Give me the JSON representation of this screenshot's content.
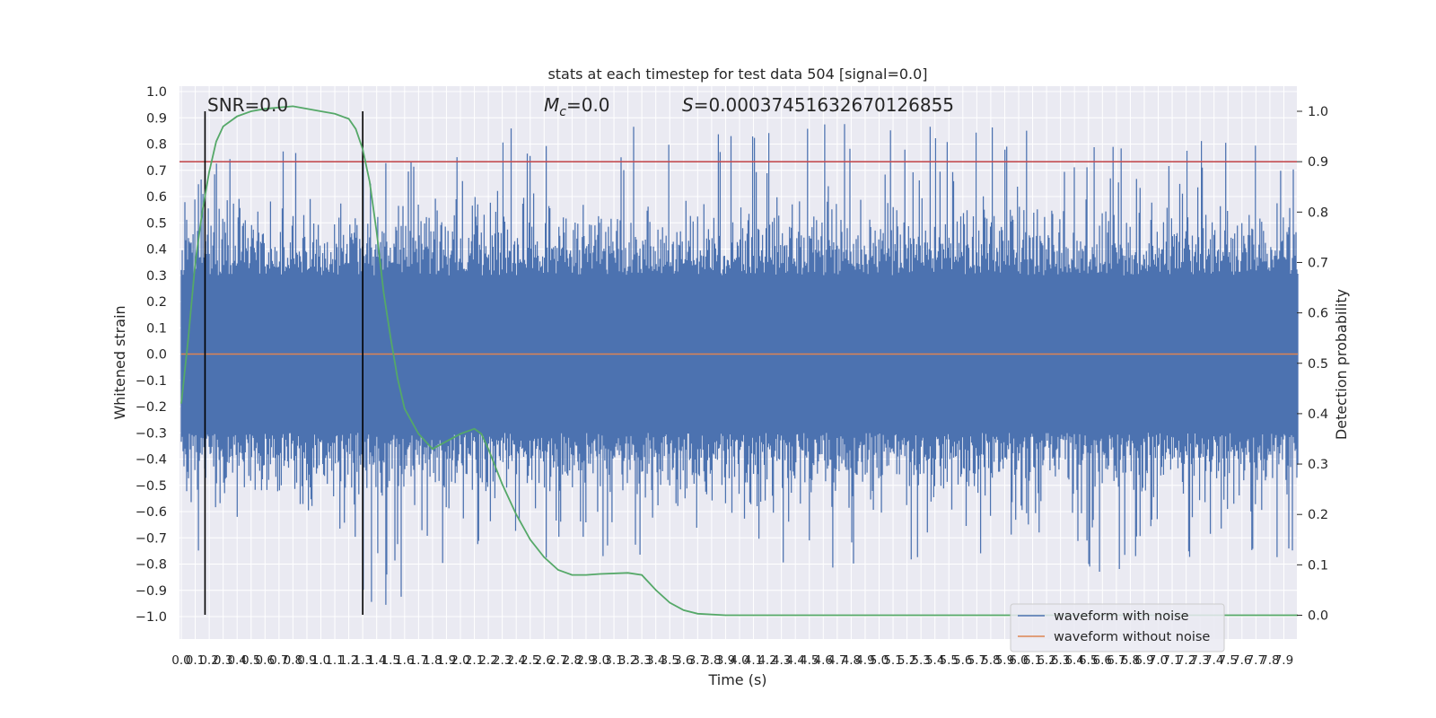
{
  "chart_data": {
    "type": "line",
    "title": "stats at each timestep for test data 504 [signal=0.0]",
    "xlabel": "Time (s)",
    "ylabel": "Whitened strain",
    "y2label": "Detection probability",
    "xlim": [
      0,
      8
    ],
    "ylim": [
      -1.1,
      1.05
    ],
    "y2lim": [
      -0.05,
      1.04
    ],
    "x_ticks": [
      "0.0",
      "0.1",
      "0.2",
      "0.3",
      "0.4",
      "0.5",
      "0.6",
      "0.7",
      "0.8",
      "0.9",
      "1.0",
      "1.1",
      "1.2",
      "1.3",
      "1.4",
      "1.5",
      "1.6",
      "1.7",
      "1.8",
      "1.9",
      "2.0",
      "2.1",
      "2.2",
      "2.3",
      "2.4",
      "2.5",
      "2.6",
      "2.7",
      "2.8",
      "2.9",
      "3.0",
      "3.1",
      "3.2",
      "3.3",
      "3.4",
      "3.5",
      "3.6",
      "3.7",
      "3.8",
      "3.9",
      "4.0",
      "4.1",
      "4.2",
      "4.3",
      "4.4",
      "4.5",
      "4.6",
      "4.7",
      "4.8",
      "4.9",
      "5.0",
      "5.1",
      "5.2",
      "5.3",
      "5.4",
      "5.5",
      "5.6",
      "5.7",
      "5.8",
      "5.9",
      "6.0",
      "6.1",
      "6.2",
      "6.3",
      "6.4",
      "6.5",
      "6.6",
      "6.7",
      "6.8",
      "6.9",
      "7.0",
      "7.1",
      "7.2",
      "7.3",
      "7.4",
      "7.5",
      "7.6",
      "7.7",
      "7.8",
      "7.9"
    ],
    "y_ticks": [
      "1.0",
      "0.9",
      "0.8",
      "0.7",
      "0.6",
      "0.5",
      "0.4",
      "0.3",
      "0.2",
      "0.1",
      "0.0",
      "−0.1",
      "−0.2",
      "−0.3",
      "−0.4",
      "−0.5",
      "−0.6",
      "−0.7",
      "−0.8",
      "−0.9",
      "−1.0"
    ],
    "y2_ticks": [
      "1.0",
      "0.9",
      "0.8",
      "0.7",
      "0.6",
      "0.5",
      "0.4",
      "0.3",
      "0.2",
      "0.1",
      "0.0"
    ],
    "annotations": {
      "snr": "SNR=0.0",
      "mc_symbol": "M",
      "mc_sub": "c",
      "mc_value": "=0.0",
      "s_symbol": "S",
      "s_value": "=0.00037451632670126855"
    },
    "vertical_markers_x": [
      0.17,
      1.3
    ],
    "threshold_y2": 0.9,
    "series": [
      {
        "name": "waveform with noise",
        "color": "#4c72b0",
        "note": "dense noise, amplitude roughly within [-1.0, 0.9]",
        "x": [
          0.0,
          0.1,
          0.2,
          0.4,
          0.6,
          0.8,
          1.0,
          1.2,
          1.4,
          2.0,
          3.0,
          4.0,
          5.0,
          6.0,
          7.0,
          8.0
        ],
        "min": [
          -0.68,
          -1.0,
          -0.6,
          -0.62,
          -0.7,
          -0.66,
          -0.6,
          -0.86,
          -1.0,
          -0.8,
          -0.82,
          -0.8,
          -0.88,
          -0.82,
          -0.86,
          -0.82
        ],
        "max": [
          0.6,
          0.82,
          0.85,
          0.72,
          0.8,
          0.87,
          0.8,
          0.62,
          0.86,
          0.86,
          0.9,
          0.9,
          0.88,
          0.86,
          0.8,
          0.84
        ]
      },
      {
        "name": "waveform without noise",
        "color": "#dd8452",
        "x": [
          0.0,
          8.0
        ],
        "y": [
          0.0,
          0.0
        ]
      },
      {
        "name": "",
        "color": "#55a868",
        "axis": "right",
        "x": [
          0.0,
          0.05,
          0.1,
          0.15,
          0.2,
          0.25,
          0.3,
          0.4,
          0.5,
          0.6,
          0.8,
          1.0,
          1.1,
          1.2,
          1.25,
          1.3,
          1.35,
          1.4,
          1.45,
          1.5,
          1.55,
          1.6,
          1.7,
          1.8,
          1.9,
          2.0,
          2.1,
          2.15,
          2.2,
          2.3,
          2.4,
          2.5,
          2.6,
          2.7,
          2.8,
          2.9,
          3.0,
          3.2,
          3.3,
          3.4,
          3.5,
          3.6,
          3.7,
          3.9,
          4.5,
          6.0,
          8.0
        ],
        "y": [
          0.42,
          0.55,
          0.7,
          0.8,
          0.88,
          0.94,
          0.97,
          0.99,
          1.0,
          1.005,
          1.01,
          1.0,
          0.995,
          0.985,
          0.965,
          0.925,
          0.86,
          0.76,
          0.64,
          0.55,
          0.47,
          0.41,
          0.36,
          0.33,
          0.345,
          0.36,
          0.37,
          0.36,
          0.33,
          0.26,
          0.2,
          0.15,
          0.115,
          0.09,
          0.08,
          0.08,
          0.082,
          0.084,
          0.08,
          0.05,
          0.025,
          0.01,
          0.003,
          0.0,
          0.0,
          0.0,
          0.0
        ]
      }
    ],
    "legend": {
      "placement": "lower-right",
      "items": [
        {
          "label": "waveform with noise",
          "color": "#4c72b0"
        },
        {
          "label": "waveform without noise",
          "color": "#dd8452"
        }
      ]
    },
    "colors": {
      "background": "#eaeaf2",
      "grid": "#ffffff",
      "threshold": "#c44e52",
      "marker": "#000000"
    }
  }
}
